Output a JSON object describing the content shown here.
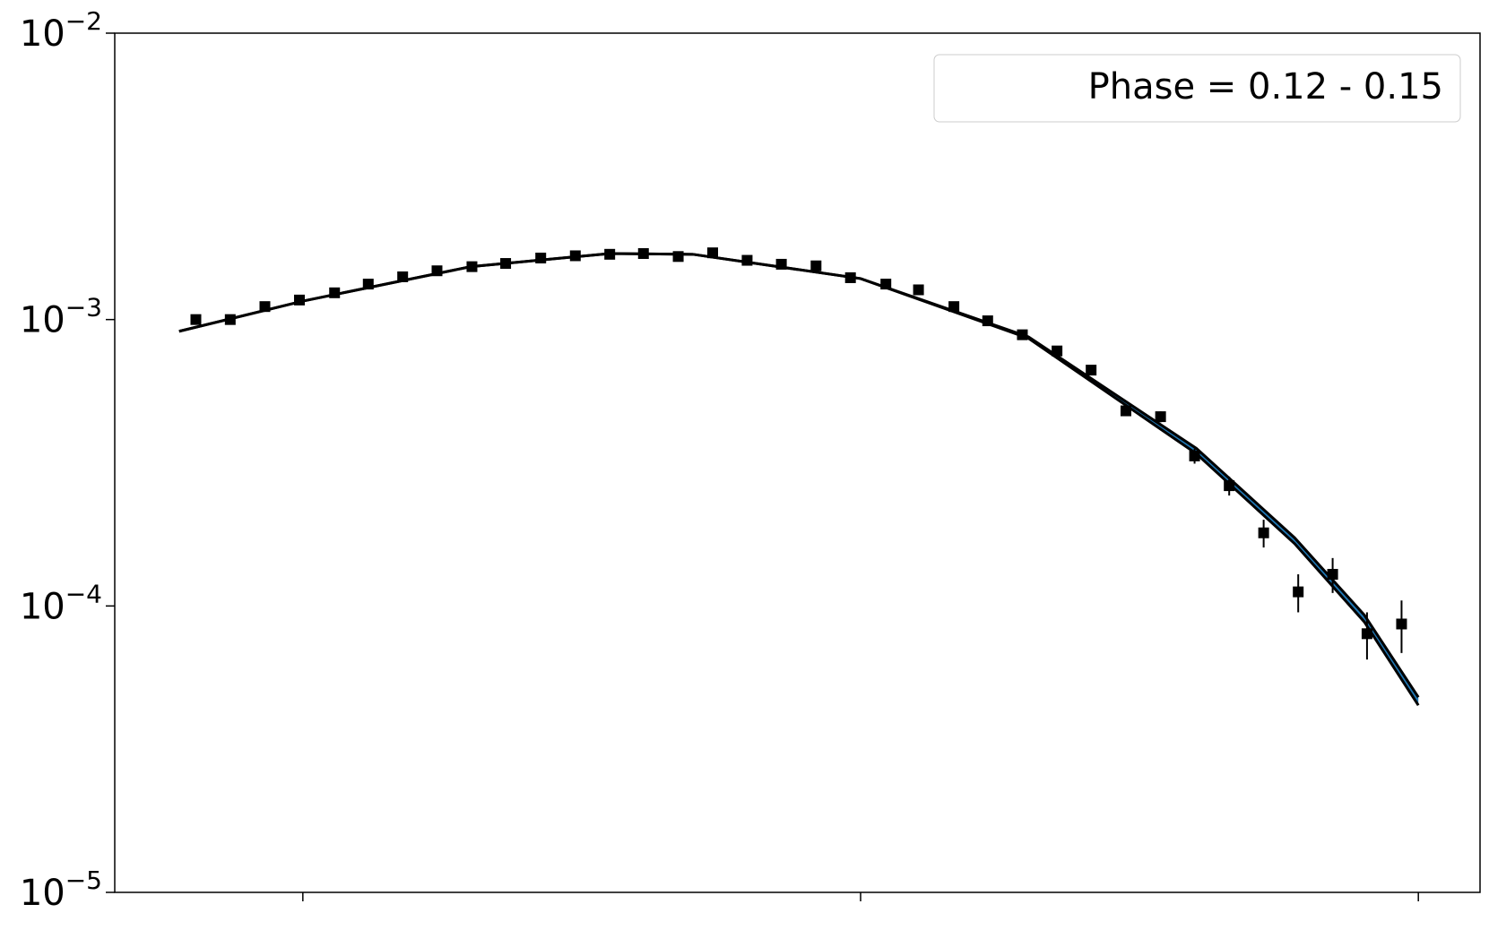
{
  "chart_data": {
    "type": "scatter",
    "legend_text": "Phase = 0.12 - 0.15",
    "legend_position": "upper right",
    "xscale": "log",
    "yscale": "log",
    "xlim": [
      0.46,
      129
    ],
    "ylim": [
      1e-05,
      0.01
    ],
    "xticks": [
      1,
      10,
      100
    ],
    "yticks": [
      {
        "value": 0.01,
        "label": "10−2"
      },
      {
        "value": 0.001,
        "label": "10−3"
      },
      {
        "value": 0.0001,
        "label": "10−4"
      },
      {
        "value": 1e-05,
        "label": "10−5"
      }
    ],
    "x": [
      0.643,
      0.741,
      0.855,
      0.986,
      1.14,
      1.31,
      1.51,
      1.74,
      2.01,
      2.31,
      2.67,
      3.08,
      3.55,
      4.08,
      4.71,
      5.43,
      6.26,
      7.21,
      8.32,
      9.59,
      11.1,
      12.7,
      14.7,
      16.9,
      19.5,
      22.5,
      25.9,
      29.9,
      34.5,
      39.7,
      45.8,
      52.8,
      60.9,
      70.2,
      80.9,
      93.3
    ],
    "values": [
      0.001,
      0.001,
      0.00111,
      0.00117,
      0.00124,
      0.00133,
      0.00141,
      0.00148,
      0.00153,
      0.00157,
      0.00164,
      0.00167,
      0.00169,
      0.0017,
      0.00166,
      0.00171,
      0.00161,
      0.00156,
      0.00154,
      0.0014,
      0.00133,
      0.00127,
      0.00111,
      0.00099,
      0.000885,
      0.000777,
      0.000666,
      0.00048,
      0.000458,
      0.000334,
      0.000263,
      0.00018,
      0.000112,
      0.000129,
      8e-05,
      8.65e-05
    ],
    "errors": [
      1e-05,
      1e-05,
      1e-05,
      1e-05,
      1e-05,
      1e-05,
      1e-05,
      1e-05,
      1e-05,
      1e-05,
      1e-05,
      1e-05,
      1e-05,
      1e-05,
      1e-05,
      1e-05,
      1e-05,
      1e-05,
      1e-05,
      1e-05,
      1e-05,
      1e-05,
      1e-05,
      1e-05,
      1e-05,
      1e-05,
      1e-05,
      2e-05,
      2e-05,
      2e-05,
      2e-05,
      2e-05,
      1.7e-05,
      1.8e-05,
      1.5e-05,
      1.8e-05
    ],
    "color": "#000000",
    "model": {
      "x": [
        0.6,
        1,
        2,
        3.55,
        5,
        10,
        20,
        40,
        60,
        80,
        100
      ],
      "upper": [
        0.00091,
        0.00116,
        0.00153,
        0.0017,
        0.00169,
        0.00139,
        0.00087,
        0.000355,
        0.000173,
        9.3e-05,
        4.8e-05
      ],
      "lower": [
        0.00091,
        0.00116,
        0.00153,
        0.0017,
        0.00169,
        0.00139,
        0.00086,
        0.00034,
        0.000165,
        8.8e-05,
        4.5e-05
      ],
      "line_color": "#000000",
      "band_color": "#1f77b4"
    }
  }
}
